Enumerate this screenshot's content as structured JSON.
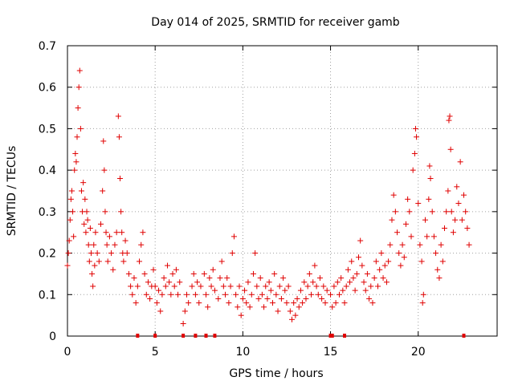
{
  "chart_data": {
    "type": "scatter",
    "title": "Day 014 of 2025, SRMTID for receiver gamb",
    "xlabel": "GPS time / hours",
    "ylabel": "SRMTID / TECUs",
    "xlim": [
      0,
      24.5
    ],
    "ylim": [
      0,
      0.7
    ],
    "xticks": [
      0,
      5,
      10,
      15,
      20
    ],
    "xtick_labels": [
      "0",
      "5",
      "10",
      "15",
      "20"
    ],
    "yticks": [
      0,
      0.1,
      0.2,
      0.3,
      0.4,
      0.5,
      0.6,
      0.7
    ],
    "ytick_labels": [
      "0",
      "0.1",
      "0.2",
      "0.3",
      "0.4",
      "0.5",
      "0.6",
      "0.7"
    ],
    "grid": true,
    "marker": "plus",
    "color": "#e00000",
    "series": [
      {
        "name": "SRMTID",
        "points": [
          [
            0.0,
            0.17
          ],
          [
            0.05,
            0.2
          ],
          [
            0.1,
            0.23
          ],
          [
            0.15,
            0.28
          ],
          [
            0.2,
            0.33
          ],
          [
            0.25,
            0.35
          ],
          [
            0.3,
            0.3
          ],
          [
            0.35,
            0.24
          ],
          [
            0.4,
            0.4
          ],
          [
            0.45,
            0.44
          ],
          [
            0.5,
            0.42
          ],
          [
            0.55,
            0.48
          ],
          [
            0.6,
            0.55
          ],
          [
            0.65,
            0.6
          ],
          [
            0.7,
            0.64
          ],
          [
            0.75,
            0.5
          ],
          [
            0.8,
            0.35
          ],
          [
            0.85,
            0.3
          ],
          [
            0.9,
            0.37
          ],
          [
            0.95,
            0.27
          ],
          [
            1.0,
            0.33
          ],
          [
            1.05,
            0.25
          ],
          [
            1.1,
            0.3
          ],
          [
            1.15,
            0.28
          ],
          [
            1.2,
            0.22
          ],
          [
            1.25,
            0.18
          ],
          [
            1.3,
            0.26
          ],
          [
            1.35,
            0.2
          ],
          [
            1.4,
            0.15
          ],
          [
            1.45,
            0.12
          ],
          [
            1.5,
            0.22
          ],
          [
            1.55,
            0.17
          ],
          [
            1.6,
            0.25
          ],
          [
            1.7,
            0.2
          ],
          [
            1.8,
            0.18
          ],
          [
            1.9,
            0.27
          ],
          [
            2.0,
            0.35
          ],
          [
            2.05,
            0.47
          ],
          [
            2.1,
            0.4
          ],
          [
            2.15,
            0.3
          ],
          [
            2.2,
            0.25
          ],
          [
            2.25,
            0.22
          ],
          [
            2.3,
            0.18
          ],
          [
            2.4,
            0.24
          ],
          [
            2.5,
            0.2
          ],
          [
            2.6,
            0.16
          ],
          [
            2.7,
            0.22
          ],
          [
            2.8,
            0.25
          ],
          [
            2.9,
            0.53
          ],
          [
            2.95,
            0.48
          ],
          [
            3.0,
            0.38
          ],
          [
            3.05,
            0.3
          ],
          [
            3.1,
            0.25
          ],
          [
            3.15,
            0.2
          ],
          [
            3.2,
            0.18
          ],
          [
            3.3,
            0.23
          ],
          [
            3.4,
            0.2
          ],
          [
            3.5,
            0.15
          ],
          [
            3.6,
            0.12
          ],
          [
            3.7,
            0.1
          ],
          [
            3.8,
            0.14
          ],
          [
            3.9,
            0.08
          ],
          [
            4.0,
            0.12
          ],
          [
            4.1,
            0.18
          ],
          [
            4.2,
            0.22
          ],
          [
            4.3,
            0.25
          ],
          [
            4.4,
            0.15
          ],
          [
            4.5,
            0.1
          ],
          [
            4.6,
            0.13
          ],
          [
            4.7,
            0.09
          ],
          [
            4.8,
            0.12
          ],
          [
            4.9,
            0.16
          ],
          [
            5.0,
            0.12
          ],
          [
            5.1,
            0.08
          ],
          [
            5.2,
            0.11
          ],
          [
            5.3,
            0.06
          ],
          [
            5.4,
            0.1
          ],
          [
            5.5,
            0.14
          ],
          [
            5.6,
            0.12
          ],
          [
            5.7,
            0.17
          ],
          [
            5.8,
            0.13
          ],
          [
            5.9,
            0.1
          ],
          [
            6.0,
            0.15
          ],
          [
            6.1,
            0.12
          ],
          [
            6.2,
            0.16
          ],
          [
            6.3,
            0.1
          ],
          [
            6.4,
            0.13
          ],
          [
            6.6,
            0.03
          ],
          [
            6.7,
            0.06
          ],
          [
            6.8,
            0.1
          ],
          [
            6.9,
            0.08
          ],
          [
            7.1,
            0.12
          ],
          [
            7.2,
            0.15
          ],
          [
            7.3,
            0.1
          ],
          [
            7.4,
            0.13
          ],
          [
            7.5,
            0.08
          ],
          [
            7.6,
            0.12
          ],
          [
            7.8,
            0.15
          ],
          [
            7.9,
            0.1
          ],
          [
            8.0,
            0.07
          ],
          [
            8.1,
            0.14
          ],
          [
            8.2,
            0.12
          ],
          [
            8.3,
            0.16
          ],
          [
            8.4,
            0.11
          ],
          [
            8.6,
            0.09
          ],
          [
            8.7,
            0.14
          ],
          [
            8.8,
            0.18
          ],
          [
            8.9,
            0.12
          ],
          [
            9.0,
            0.1
          ],
          [
            9.1,
            0.14
          ],
          [
            9.2,
            0.08
          ],
          [
            9.3,
            0.12
          ],
          [
            9.4,
            0.2
          ],
          [
            9.5,
            0.24
          ],
          [
            9.6,
            0.1
          ],
          [
            9.7,
            0.07
          ],
          [
            9.8,
            0.12
          ],
          [
            9.9,
            0.05
          ],
          [
            10.0,
            0.09
          ],
          [
            10.1,
            0.11
          ],
          [
            10.2,
            0.08
          ],
          [
            10.3,
            0.13
          ],
          [
            10.4,
            0.07
          ],
          [
            10.5,
            0.1
          ],
          [
            10.6,
            0.15
          ],
          [
            10.7,
            0.2
          ],
          [
            10.8,
            0.12
          ],
          [
            10.9,
            0.09
          ],
          [
            11.0,
            0.14
          ],
          [
            11.1,
            0.1
          ],
          [
            11.2,
            0.07
          ],
          [
            11.3,
            0.12
          ],
          [
            11.4,
            0.09
          ],
          [
            11.5,
            0.13
          ],
          [
            11.6,
            0.11
          ],
          [
            11.7,
            0.08
          ],
          [
            11.8,
            0.15
          ],
          [
            11.9,
            0.1
          ],
          [
            12.0,
            0.06
          ],
          [
            12.1,
            0.12
          ],
          [
            12.2,
            0.09
          ],
          [
            12.3,
            0.14
          ],
          [
            12.4,
            0.11
          ],
          [
            12.5,
            0.08
          ],
          [
            12.6,
            0.12
          ],
          [
            12.7,
            0.06
          ],
          [
            12.8,
            0.04
          ],
          [
            12.9,
            0.08
          ],
          [
            13.0,
            0.05
          ],
          [
            13.1,
            0.09
          ],
          [
            13.2,
            0.07
          ],
          [
            13.3,
            0.11
          ],
          [
            13.4,
            0.08
          ],
          [
            13.5,
            0.13
          ],
          [
            13.6,
            0.09
          ],
          [
            13.7,
            0.12
          ],
          [
            13.8,
            0.15
          ],
          [
            13.9,
            0.1
          ],
          [
            14.0,
            0.13
          ],
          [
            14.1,
            0.17
          ],
          [
            14.2,
            0.12
          ],
          [
            14.3,
            0.1
          ],
          [
            14.4,
            0.14
          ],
          [
            14.5,
            0.09
          ],
          [
            14.6,
            0.12
          ],
          [
            14.7,
            0.08
          ],
          [
            14.8,
            0.11
          ],
          [
            15.0,
            0.1
          ],
          [
            15.1,
            0.07
          ],
          [
            15.2,
            0.12
          ],
          [
            15.3,
            0.08
          ],
          [
            15.4,
            0.13
          ],
          [
            15.5,
            0.1
          ],
          [
            15.6,
            0.14
          ],
          [
            15.7,
            0.11
          ],
          [
            15.8,
            0.08
          ],
          [
            15.9,
            0.12
          ],
          [
            16.0,
            0.16
          ],
          [
            16.1,
            0.13
          ],
          [
            16.2,
            0.18
          ],
          [
            16.3,
            0.14
          ],
          [
            16.4,
            0.11
          ],
          [
            16.5,
            0.15
          ],
          [
            16.6,
            0.19
          ],
          [
            16.7,
            0.23
          ],
          [
            16.8,
            0.17
          ],
          [
            16.9,
            0.13
          ],
          [
            17.0,
            0.11
          ],
          [
            17.1,
            0.15
          ],
          [
            17.2,
            0.09
          ],
          [
            17.3,
            0.12
          ],
          [
            17.4,
            0.08
          ],
          [
            17.5,
            0.14
          ],
          [
            17.6,
            0.18
          ],
          [
            17.7,
            0.12
          ],
          [
            17.8,
            0.16
          ],
          [
            17.9,
            0.2
          ],
          [
            18.0,
            0.14
          ],
          [
            18.1,
            0.17
          ],
          [
            18.2,
            0.13
          ],
          [
            18.3,
            0.18
          ],
          [
            18.4,
            0.22
          ],
          [
            18.5,
            0.28
          ],
          [
            18.6,
            0.34
          ],
          [
            18.7,
            0.3
          ],
          [
            18.8,
            0.25
          ],
          [
            18.9,
            0.2
          ],
          [
            19.0,
            0.17
          ],
          [
            19.1,
            0.22
          ],
          [
            19.2,
            0.19
          ],
          [
            19.3,
            0.27
          ],
          [
            19.4,
            0.33
          ],
          [
            19.5,
            0.3
          ],
          [
            19.6,
            0.24
          ],
          [
            19.7,
            0.4
          ],
          [
            19.8,
            0.44
          ],
          [
            19.85,
            0.5
          ],
          [
            19.9,
            0.48
          ],
          [
            20.0,
            0.32
          ],
          [
            20.1,
            0.22
          ],
          [
            20.2,
            0.18
          ],
          [
            20.25,
            0.08
          ],
          [
            20.3,
            0.1
          ],
          [
            20.4,
            0.28
          ],
          [
            20.5,
            0.24
          ],
          [
            20.6,
            0.33
          ],
          [
            20.65,
            0.41
          ],
          [
            20.7,
            0.38
          ],
          [
            20.8,
            0.3
          ],
          [
            20.9,
            0.24
          ],
          [
            21.0,
            0.2
          ],
          [
            21.1,
            0.16
          ],
          [
            21.2,
            0.14
          ],
          [
            21.3,
            0.22
          ],
          [
            21.4,
            0.18
          ],
          [
            21.5,
            0.26
          ],
          [
            21.6,
            0.3
          ],
          [
            21.7,
            0.35
          ],
          [
            21.75,
            0.52
          ],
          [
            21.8,
            0.53
          ],
          [
            21.85,
            0.45
          ],
          [
            21.9,
            0.3
          ],
          [
            22.0,
            0.25
          ],
          [
            22.1,
            0.28
          ],
          [
            22.2,
            0.36
          ],
          [
            22.3,
            0.32
          ],
          [
            22.4,
            0.42
          ],
          [
            22.5,
            0.28
          ],
          [
            22.6,
            0.34
          ],
          [
            22.7,
            0.3
          ],
          [
            22.8,
            0.26
          ],
          [
            22.9,
            0.22
          ]
        ]
      }
    ],
    "floor_points_x": [
      4.0,
      5.0,
      6.6,
      7.3,
      7.9,
      8.4,
      15.0,
      15.1,
      15.8,
      22.6
    ]
  }
}
